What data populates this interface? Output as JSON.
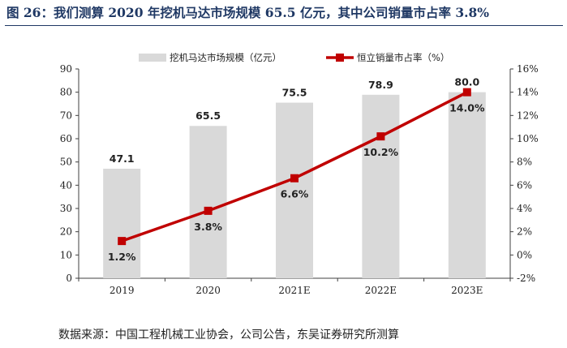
{
  "title": "图 26：我们测算 2020 年挖机马达市场规模 65.5 亿元，其中公司销量市占率 3.8%",
  "source": "数据来源：中国工程机械工业协会，公司公告，东吴证券研究所测算",
  "chart_data": {
    "type": "bar+line",
    "categories": [
      "2019",
      "2020",
      "2021E",
      "2022E",
      "2023E"
    ],
    "series": [
      {
        "name": "挖机马达市场规模（亿元）",
        "type": "bar",
        "axis": "left",
        "values": [
          47.1,
          65.5,
          75.5,
          78.9,
          80.0
        ],
        "labels": [
          "47.1",
          "65.5",
          "75.5",
          "78.9",
          "80.0"
        ]
      },
      {
        "name": "恒立销量市占率（%）",
        "type": "line",
        "axis": "right",
        "values": [
          1.2,
          3.8,
          6.6,
          10.2,
          14.0
        ],
        "labels": [
          "1.2%",
          "3.8%",
          "6.6%",
          "10.2%",
          "14.0%"
        ]
      }
    ],
    "y_left": {
      "range": [
        0,
        90
      ],
      "ticks": [
        "0",
        "10",
        "20",
        "30",
        "40",
        "50",
        "60",
        "70",
        "80",
        "90"
      ]
    },
    "y_right": {
      "range": [
        -2,
        16
      ],
      "ticks": [
        "-2%",
        "0%",
        "2%",
        "4%",
        "6%",
        "8%",
        "10%",
        "12%",
        "14%",
        "16%"
      ]
    },
    "colors": {
      "bar": "#d9d9d9",
      "line": "#c00000",
      "title": "#1f3864"
    },
    "legend": "top"
  }
}
